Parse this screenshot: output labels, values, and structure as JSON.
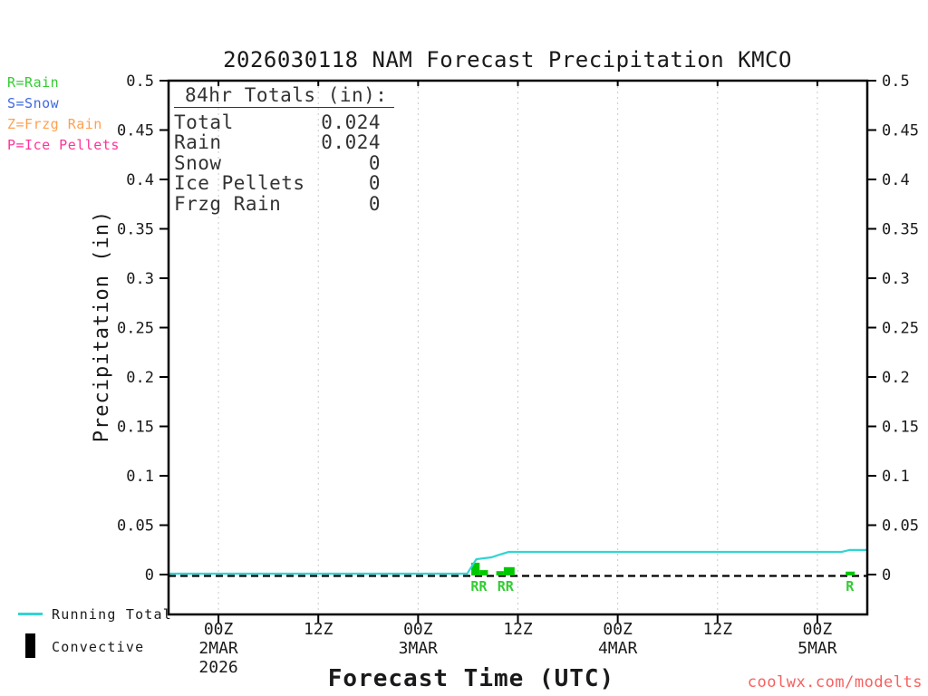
{
  "title": "2026030118 NAM Forecast Precipitation KMCO",
  "watermark": "coolwx.com/modelts",
  "watermark_color": "#f86060",
  "type_legend": {
    "items": [
      {
        "text": "R=Rain",
        "color": "#33cc33"
      },
      {
        "text": "S=Snow",
        "color": "#4169e1"
      },
      {
        "text": "Z=Frzg Rain",
        "color": "#ffa050"
      },
      {
        "text": "P=Ice Pellets",
        "color": "#ff3399"
      }
    ]
  },
  "totals_box": {
    "heading": "84hr Totals (in):",
    "rows": [
      {
        "label": "Total",
        "value": "0.024"
      },
      {
        "label": "Rain",
        "value": "0.024"
      },
      {
        "label": "Snow",
        "value": "0"
      },
      {
        "label": "Ice Pellets",
        "value": "0"
      },
      {
        "label": "Frzg Rain",
        "value": "0"
      }
    ]
  },
  "bottom_legend": {
    "running_total_label": "Running Total",
    "convective_label": "Convective",
    "line_color": "#30d5d5",
    "convective_color": "#000000"
  },
  "chart_data": {
    "type": "line+bar",
    "title": "2026030118 NAM Forecast Precipitation KMCO",
    "xlabel": "Forecast Time (UTC)",
    "ylabel": "Precipitation (in)",
    "x_start": "2026-03-01 18Z",
    "x_hours_total": 84,
    "ylim": [
      0,
      0.5
    ],
    "grid": "vertical-dotted",
    "zero_line": "dashed-black",
    "y_ticks": [
      {
        "value": 0,
        "label": "0"
      },
      {
        "value": 0.05,
        "label": "0.05"
      },
      {
        "value": 0.1,
        "label": "0.1"
      },
      {
        "value": 0.15,
        "label": "0.15"
      },
      {
        "value": 0.2,
        "label": "0.2"
      },
      {
        "value": 0.25,
        "label": "0.25"
      },
      {
        "value": 0.3,
        "label": "0.3"
      },
      {
        "value": 0.35,
        "label": "0.35"
      },
      {
        "value": 0.4,
        "label": "0.4"
      },
      {
        "value": 0.45,
        "label": "0.45"
      },
      {
        "value": 0.5,
        "label": "0.5"
      }
    ],
    "x_ticks": [
      {
        "hour": 6,
        "time": "00Z",
        "date": "2MAR",
        "year": "2026"
      },
      {
        "hour": 18,
        "time": "12Z"
      },
      {
        "hour": 30,
        "time": "00Z",
        "date": "3MAR"
      },
      {
        "hour": 42,
        "time": "12Z"
      },
      {
        "hour": 54,
        "time": "00Z",
        "date": "4MAR"
      },
      {
        "hour": 66,
        "time": "12Z"
      },
      {
        "hour": 78,
        "time": "00Z",
        "date": "5MAR"
      }
    ],
    "series": [
      {
        "name": "Running Total",
        "type": "line",
        "color": "#30d5d5",
        "points": [
          [
            0,
            0
          ],
          [
            35.9,
            0
          ],
          [
            37.0,
            0.0147
          ],
          [
            38.8,
            0.0165
          ],
          [
            39.7,
            0.019
          ],
          [
            40.9,
            0.022
          ],
          [
            80.9,
            0.022
          ],
          [
            81.9,
            0.024
          ],
          [
            84,
            0.024
          ]
        ]
      }
    ],
    "bar_color": "#00c800",
    "bars": [
      {
        "h0": 36.4,
        "h1": 37.4,
        "value": 0.012,
        "type": "R"
      },
      {
        "h0": 37.4,
        "h1": 38.4,
        "value": 0.0045,
        "type": "R"
      },
      {
        "h0": 39.4,
        "h1": 40.3,
        "value": 0.0035,
        "type": "R"
      },
      {
        "h0": 40.3,
        "h1": 41.6,
        "value": 0.0075,
        "type": "R"
      },
      {
        "h0": 81.4,
        "h1": 82.5,
        "value": 0.003,
        "type": "R"
      }
    ],
    "type_label_color": "#33cc33",
    "type_labels": [
      {
        "hour": 37.3,
        "text": "RR"
      },
      {
        "hour": 40.5,
        "text": "RR"
      },
      {
        "hour": 81.9,
        "text": "R"
      }
    ]
  }
}
